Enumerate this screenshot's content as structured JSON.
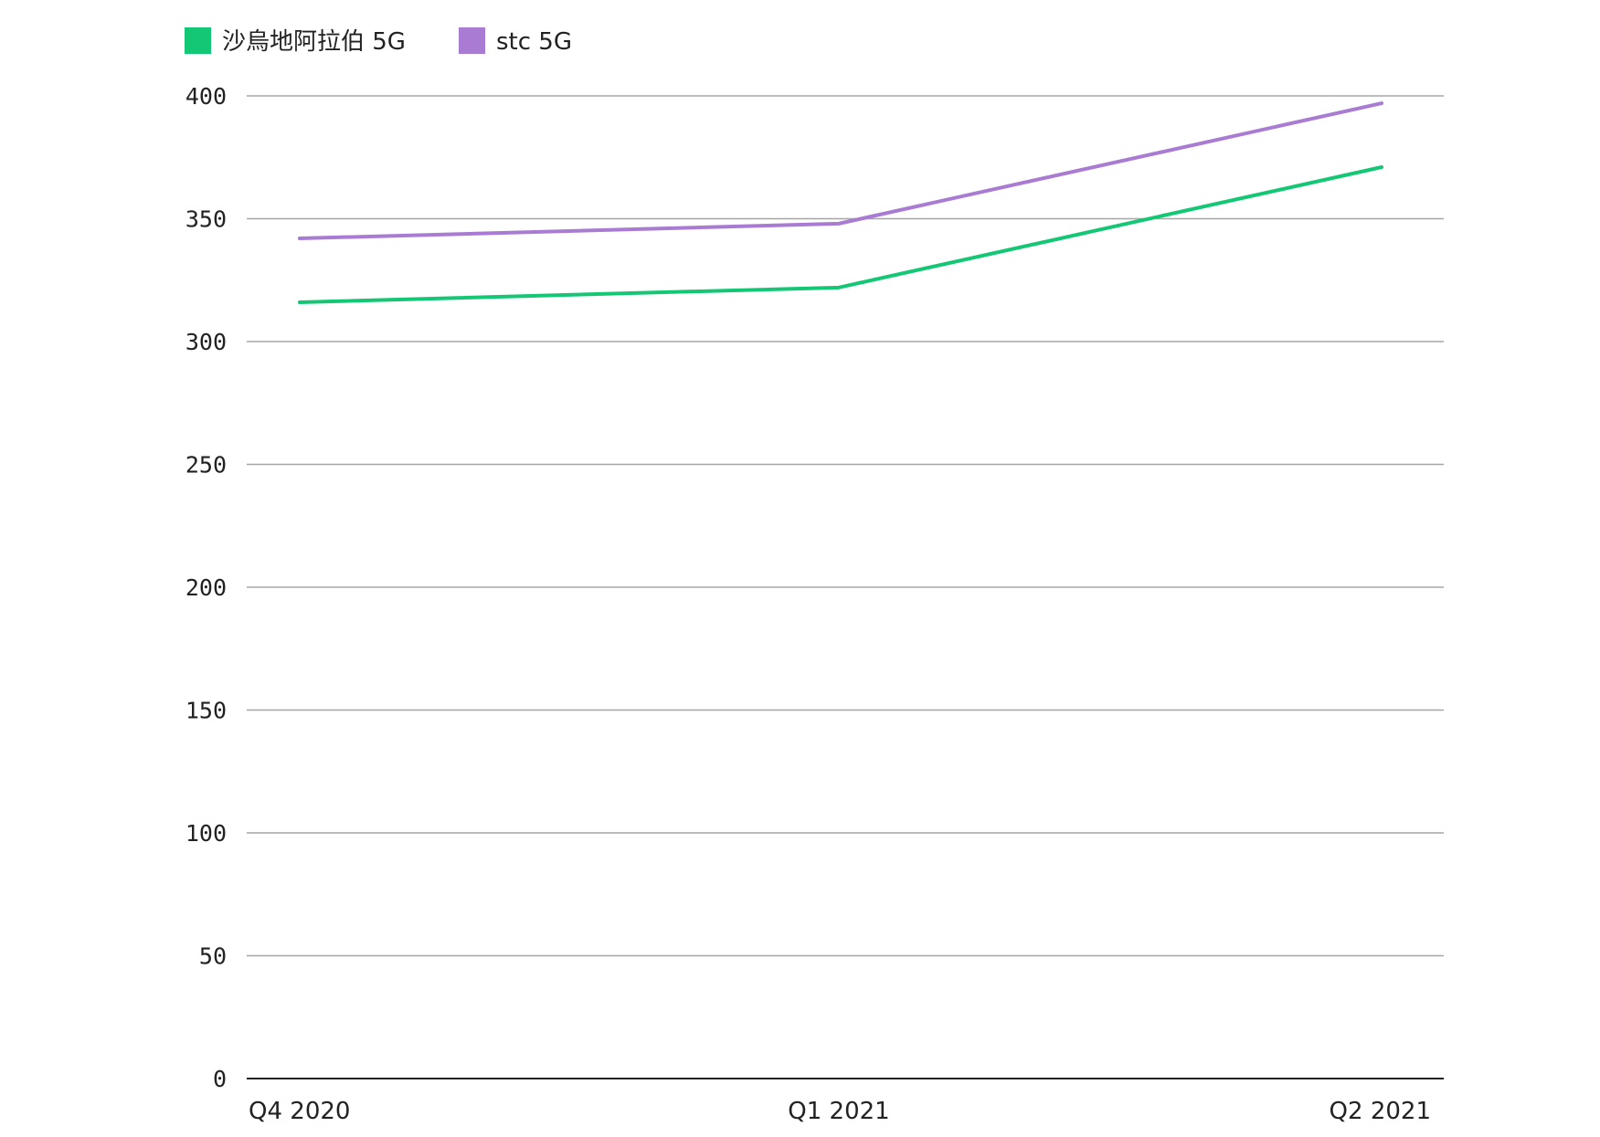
{
  "chart_data": {
    "type": "line",
    "categories": [
      "Q4 2020",
      "Q1 2021",
      "Q2 2021"
    ],
    "series": [
      {
        "name": "沙烏地阿拉伯 5G",
        "color": "#14c774",
        "values": [
          316,
          322,
          371
        ]
      },
      {
        "name": "stc 5G",
        "color": "#a97bd3",
        "values": [
          342,
          348,
          397
        ]
      }
    ],
    "ylim": [
      0,
      400
    ],
    "yticks": [
      0,
      50,
      100,
      150,
      200,
      250,
      300,
      350,
      400
    ],
    "grid": true,
    "legend": "top-left"
  }
}
